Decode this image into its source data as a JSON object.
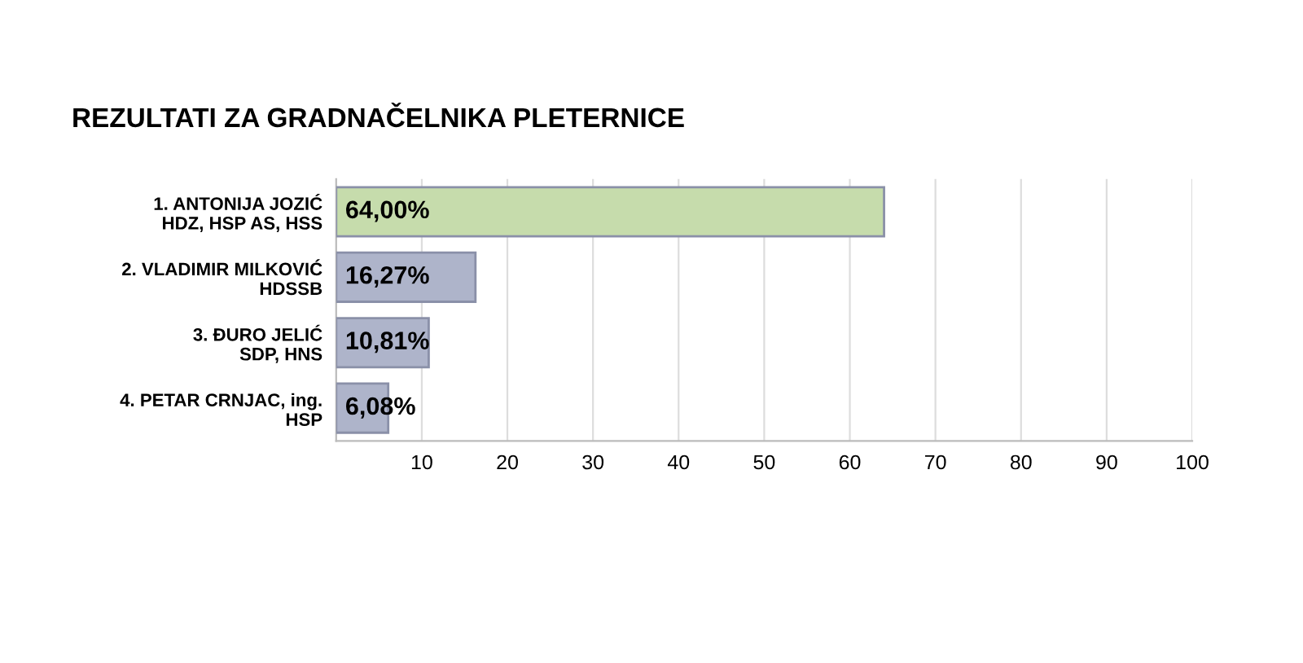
{
  "chart_data": {
    "type": "bar",
    "orientation": "horizontal",
    "title": "REZULTATI ZA GRADNAČELNIKA PLETERNICE",
    "categories": [
      "1. ANTONIJA JOZIĆ\nHDZ, HSP AS, HSS",
      "2. VLADIMIR MILKOVIĆ\nHDSSB",
      "3. ĐURO JELIĆ\nSDP, HNS",
      "4. PETAR CRNJAC, ing.\nHSP"
    ],
    "values": [
      64.0,
      16.27,
      10.81,
      6.08
    ],
    "value_labels": [
      "64,00%",
      "16,27%",
      "10,81%",
      "6,08%"
    ],
    "colors": [
      "#c6dcac",
      "#aeb4ca",
      "#aeb4ca",
      "#aeb4ca"
    ],
    "xlim": [
      0,
      100
    ],
    "xticks": [
      10,
      20,
      30,
      40,
      50,
      60,
      70,
      80,
      90,
      100
    ],
    "grid": "x"
  }
}
